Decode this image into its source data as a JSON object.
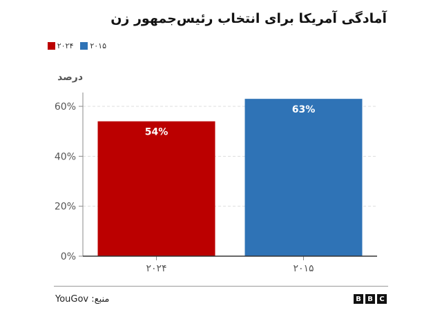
{
  "title": "آمادگی آمریکا برای انتخاب رئیس‌جمهور زن",
  "legend": [
    {
      "label": "۲۰۲۴",
      "color": "#bb0000"
    },
    {
      "label": "۲۰۱۵",
      "color": "#2f73b6"
    }
  ],
  "y_unit": "درصد",
  "source": "منبع: YouGov",
  "brand": [
    "B",
    "B",
    "C"
  ],
  "chart_data": {
    "type": "bar",
    "categories": [
      "۲۰۲۴",
      "۲۰۱۵"
    ],
    "values": [
      54,
      63
    ],
    "value_labels": [
      "54%",
      "63%"
    ],
    "colors": [
      "#bb0000",
      "#2f73b6"
    ],
    "ylim": [
      0,
      60
    ],
    "yticks": [
      0,
      20,
      40,
      60
    ],
    "ytick_labels": [
      "0%",
      "20%",
      "40%",
      "60%"
    ],
    "grid": true,
    "title": "آمادگی آمریکا برای انتخاب رئیس‌جمهور زن",
    "ylabel": "درصد",
    "legend_position": "top-left"
  }
}
